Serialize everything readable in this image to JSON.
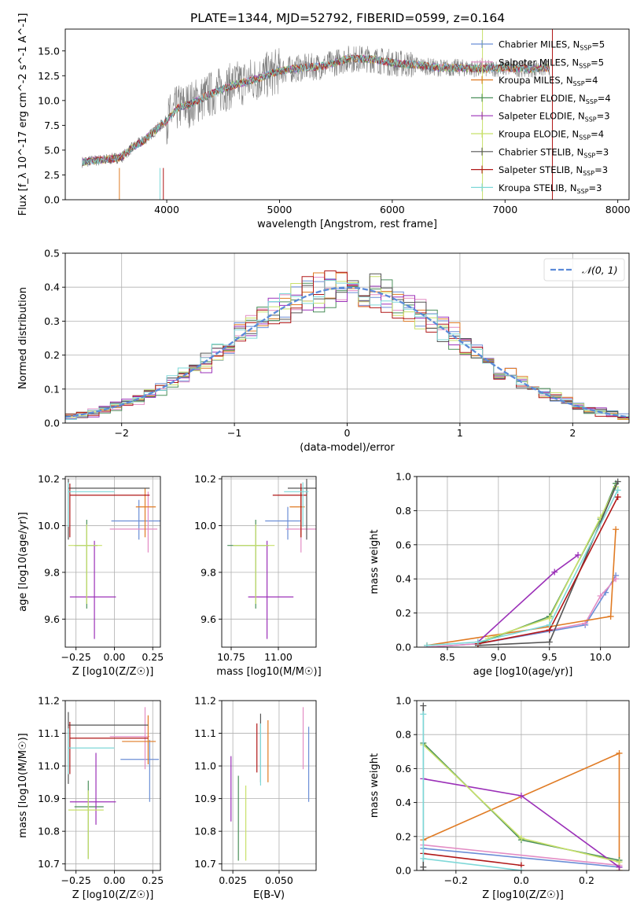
{
  "figure_title": "PLATE=1344, MJD=52792, FIBERID=0599, z=0.164",
  "colors": {
    "Chabrier MILES": "#6b8ed6",
    "Salpeter MILES": "#e38cc4",
    "Kroupa MILES": "#e07b24",
    "Chabrier ELODIE": "#4a8f5a",
    "Salpeter ELODIE": "#9b30b8",
    "Kroupa ELODIE": "#c8e06a",
    "Chabrier STELIB": "#555555",
    "Salpeter STELIB": "#b01818",
    "Kroupa STELIB": "#7ed8d8",
    "data": "#808080",
    "normal": "#5b8ad8"
  },
  "chart_data": [
    {
      "id": "spectrum",
      "type": "line",
      "xlabel": "wavelength [Angstrom, rest frame]",
      "ylabel": "Flux [f_λ 10^-17 erg cm^-2 s^-1 A^-1]",
      "xlim": [
        3100,
        8100
      ],
      "ylim": [
        0,
        17.2
      ],
      "xticks": [
        4000,
        5000,
        6000,
        7000,
        8000
      ],
      "yticks": [
        0.0,
        2.5,
        5.0,
        7.5,
        10.0,
        12.5,
        15.0
      ],
      "legend": "top-right",
      "legend_entries": [
        {
          "model": "Chabrier MILES",
          "nssp": "5"
        },
        {
          "model": "Salpeter MILES",
          "nssp": "5"
        },
        {
          "model": "Kroupa MILES",
          "nssp": "4"
        },
        {
          "model": "Chabrier ELODIE",
          "nssp": "4"
        },
        {
          "model": "Salpeter ELODIE",
          "nssp": "3"
        },
        {
          "model": "Kroupa ELODIE",
          "nssp": "4"
        },
        {
          "model": "Chabrier STELIB",
          "nssp": "3"
        },
        {
          "model": "Salpeter STELIB",
          "nssp": "3"
        },
        {
          "model": "Kroupa STELIB",
          "nssp": "3"
        }
      ],
      "continuum": {
        "x": [
          3250,
          3400,
          3500,
          3600,
          3700,
          3800,
          3900,
          4000,
          4100,
          4200,
          4400,
          4600,
          4800,
          5000,
          5200,
          5400,
          5600,
          5800,
          6000,
          6200,
          6400,
          6600,
          6800,
          7000,
          7200,
          7400
        ],
        "y": [
          3.8,
          4.0,
          4.1,
          4.3,
          5.3,
          6.0,
          7.0,
          8.0,
          9.3,
          9.6,
          10.7,
          11.6,
          12.2,
          13.0,
          13.3,
          13.5,
          14.2,
          14.2,
          13.8,
          13.6,
          13.3,
          13.3,
          13.2,
          13.3,
          13.2,
          13.3
        ]
      }
    },
    {
      "id": "residuals",
      "type": "bar",
      "xlabel": "(data-model)/error",
      "ylabel": "Normed distribution",
      "xlim": [
        -2.5,
        2.5
      ],
      "ylim": [
        0,
        0.5
      ],
      "xticks": [
        -2,
        -1,
        0,
        1,
        2
      ],
      "yticks": [
        0.0,
        0.1,
        0.2,
        0.3,
        0.4,
        0.5
      ],
      "grid": true,
      "legend": "top-right",
      "legend_label": "𝒩(0, 1)",
      "bins": 50
    },
    {
      "id": "age-Z",
      "type": "scatter",
      "xlabel": "Z [log10(Z/Z☉)]",
      "ylabel": "age  [log10(age/yr)]",
      "xlim": [
        -0.32,
        0.3
      ],
      "ylim": [
        9.48,
        10.21
      ],
      "xticks": [
        -0.25,
        0.0,
        0.25
      ],
      "xtick_labels": [
        "−0.25",
        "0.00",
        "0.25"
      ],
      "yticks": [
        9.6,
        9.8,
        10.0,
        10.2
      ],
      "grid": true,
      "points": [
        {
          "model": "Chabrier MILES",
          "x": 0.16,
          "y": 10.02,
          "xerr": [
            0.18,
            0.14
          ],
          "yerr": [
            0.08,
            0.09
          ]
        },
        {
          "model": "Salpeter MILES",
          "x": 0.22,
          "y": 9.985,
          "xerr": [
            0.25,
            0.06
          ],
          "yerr": [
            0.1,
            0.16
          ]
        },
        {
          "model": "Kroupa MILES",
          "x": 0.2,
          "y": 10.08,
          "xerr": [
            0.06,
            0.07
          ],
          "yerr": [
            0.13,
            0.08
          ]
        },
        {
          "model": "Chabrier ELODIE",
          "x": -0.18,
          "y": 9.915,
          "xerr": [
            0.08,
            0.07
          ],
          "yerr": [
            0.27,
            0.11
          ]
        },
        {
          "model": "Salpeter ELODIE",
          "x": -0.13,
          "y": 9.695,
          "xerr": [
            0.16,
            0.14
          ],
          "yerr": [
            0.18,
            0.24
          ]
        },
        {
          "model": "Kroupa ELODIE",
          "x": -0.18,
          "y": 9.915,
          "xerr": [
            0.12,
            0.1
          ],
          "yerr": [
            0.25,
            0.09
          ]
        },
        {
          "model": "Chabrier STELIB",
          "x": -0.3,
          "y": 10.16,
          "xerr": [
            0.0,
            0.53
          ],
          "yerr": [
            0.22,
            0.04
          ]
        },
        {
          "model": "Salpeter STELIB",
          "x": -0.29,
          "y": 10.13,
          "xerr": [
            0.0,
            0.52
          ],
          "yerr": [
            0.18,
            0.05
          ]
        },
        {
          "model": "Kroupa STELIB",
          "x": -0.3,
          "y": 10.145,
          "xerr": [
            0.0,
            0.3
          ],
          "yerr": [
            0.15,
            0.04
          ]
        }
      ]
    },
    {
      "id": "age-mass",
      "type": "scatter",
      "xlabel": "mass [log10(M/M☉)]",
      "ylabel": "",
      "xlim": [
        10.7,
        11.2
      ],
      "ylim": [
        9.48,
        10.21
      ],
      "xticks": [
        10.75,
        11.0
      ],
      "yticks": [
        9.6,
        9.8,
        10.0,
        10.2
      ],
      "grid": true,
      "points": [
        {
          "model": "Chabrier MILES",
          "x": 11.05,
          "y": 10.02,
          "xerr": [
            0.12,
            0.07
          ],
          "yerr": [
            0.08,
            0.06
          ]
        },
        {
          "model": "Salpeter MILES",
          "x": 11.12,
          "y": 9.985,
          "xerr": [
            0.08,
            0.08
          ],
          "yerr": [
            0.1,
            0.14
          ]
        },
        {
          "model": "Kroupa MILES",
          "x": 11.12,
          "y": 10.08,
          "xerr": [
            0.06,
            0.02
          ],
          "yerr": [
            0.13,
            0.08
          ]
        },
        {
          "model": "Chabrier ELODIE",
          "x": 10.88,
          "y": 9.915,
          "xerr": [
            0.15,
            0.07
          ],
          "yerr": [
            0.27,
            0.11
          ]
        },
        {
          "model": "Salpeter ELODIE",
          "x": 10.94,
          "y": 9.695,
          "xerr": [
            0.1,
            0.14
          ],
          "yerr": [
            0.18,
            0.24
          ]
        },
        {
          "model": "Kroupa ELODIE",
          "x": 10.88,
          "y": 9.915,
          "xerr": [
            0.12,
            0.1
          ],
          "yerr": [
            0.25,
            0.09
          ]
        },
        {
          "model": "Chabrier STELIB",
          "x": 11.15,
          "y": 10.16,
          "xerr": [
            0.1,
            0.07
          ],
          "yerr": [
            0.22,
            0.04
          ]
        },
        {
          "model": "Salpeter STELIB",
          "x": 11.12,
          "y": 10.13,
          "xerr": [
            0.15,
            0.03
          ],
          "yerr": [
            0.18,
            0.05
          ]
        },
        {
          "model": "Kroupa STELIB",
          "x": 11.13,
          "y": 10.145,
          "xerr": [
            0.1,
            0.03
          ],
          "yerr": [
            0.15,
            0.04
          ]
        }
      ]
    },
    {
      "id": "weight-age",
      "type": "line",
      "xlabel": "age  [log10(age/yr)]",
      "ylabel": "mass weight",
      "xlim": [
        8.2,
        10.28
      ],
      "ylim": [
        0,
        1
      ],
      "xticks": [
        8.5,
        9.0,
        9.5,
        10.0
      ],
      "yticks": [
        0.0,
        0.2,
        0.4,
        0.6,
        0.8,
        1.0
      ],
      "grid": true,
      "series": [
        {
          "model": "Chabrier MILES",
          "x": [
            8.3,
            8.8,
            9.85,
            10.05,
            10.15
          ],
          "y": [
            0.0,
            0.02,
            0.13,
            0.32,
            0.42
          ]
        },
        {
          "model": "Salpeter MILES",
          "x": [
            8.3,
            8.8,
            9.85,
            10.0,
            10.15
          ],
          "y": [
            0.0,
            0.02,
            0.14,
            0.3,
            0.4
          ]
        },
        {
          "model": "Kroupa MILES",
          "x": [
            8.3,
            9.5,
            10.1,
            10.15
          ],
          "y": [
            0.01,
            0.12,
            0.18,
            0.69
          ]
        },
        {
          "model": "Chabrier ELODIE",
          "x": [
            8.8,
            9.5,
            10.0,
            10.15
          ],
          "y": [
            0.02,
            0.18,
            0.75,
            0.96
          ]
        },
        {
          "model": "Salpeter ELODIE",
          "x": [
            8.8,
            9.55,
            9.78
          ],
          "y": [
            0.03,
            0.44,
            0.54
          ]
        },
        {
          "model": "Kroupa ELODIE",
          "x": [
            8.9,
            9.5,
            10.0,
            10.15
          ],
          "y": [
            0.05,
            0.17,
            0.76,
            0.94
          ]
        },
        {
          "model": "Chabrier STELIB",
          "x": [
            8.8,
            9.5,
            10.17
          ],
          "y": [
            0.01,
            0.03,
            0.97
          ]
        },
        {
          "model": "Salpeter STELIB",
          "x": [
            8.8,
            9.5,
            10.17
          ],
          "y": [
            0.02,
            0.1,
            0.88
          ]
        },
        {
          "model": "Kroupa STELIB",
          "x": [
            8.3,
            8.8,
            9.5,
            10.17
          ],
          "y": [
            0.01,
            0.03,
            0.13,
            0.92
          ]
        }
      ]
    },
    {
      "id": "mass-Z",
      "type": "scatter",
      "xlabel": "Z [log10(Z/Z☉)]",
      "ylabel": "mass [log10(M/M☉)]",
      "xlim": [
        -0.32,
        0.3
      ],
      "ylim": [
        10.68,
        11.2
      ],
      "xticks": [
        -0.25,
        0.0,
        0.25
      ],
      "xtick_labels": [
        "−0.25",
        "0.00",
        "0.25"
      ],
      "yticks": [
        10.7,
        10.8,
        10.9,
        11.0,
        11.1,
        11.2
      ],
      "grid": true,
      "points": [
        {
          "model": "Chabrier MILES",
          "x": 0.23,
          "y": 11.02,
          "xerr": [
            0.19,
            0.06
          ],
          "yerr": [
            0.13,
            0.06
          ]
        },
        {
          "model": "Salpeter MILES",
          "x": 0.2,
          "y": 11.09,
          "xerr": [
            0.23,
            0.03
          ],
          "yerr": [
            0.1,
            0.09
          ]
        },
        {
          "model": "Kroupa MILES",
          "x": 0.22,
          "y": 11.075,
          "xerr": [
            0.17,
            0.05
          ],
          "yerr": [
            0.07,
            0.08
          ]
        },
        {
          "model": "Chabrier ELODIE",
          "x": -0.17,
          "y": 10.875,
          "xerr": [
            0.09,
            0.1
          ],
          "yerr": [
            0.16,
            0.08
          ]
        },
        {
          "model": "Salpeter ELODIE",
          "x": -0.12,
          "y": 10.89,
          "xerr": [
            0.17,
            0.13
          ],
          "yerr": [
            0.07,
            0.15
          ]
        },
        {
          "model": "Kroupa ELODIE",
          "x": -0.17,
          "y": 10.865,
          "xerr": [
            0.13,
            0.1
          ],
          "yerr": [
            0.15,
            0.06
          ]
        },
        {
          "model": "Chabrier STELIB",
          "x": -0.3,
          "y": 11.125,
          "xerr": [
            0.0,
            0.52
          ],
          "yerr": [
            0.18,
            0.04
          ]
        },
        {
          "model": "Salpeter STELIB",
          "x": -0.29,
          "y": 11.085,
          "xerr": [
            0.0,
            0.51
          ],
          "yerr": [
            0.11,
            0.05
          ]
        },
        {
          "model": "Kroupa STELIB",
          "x": -0.3,
          "y": 11.055,
          "xerr": [
            0.0,
            0.3
          ],
          "yerr": [
            0.08,
            0.06
          ]
        }
      ]
    },
    {
      "id": "mass-EBV",
      "type": "scatter",
      "xlabel": "E(B-V)",
      "ylabel": "",
      "xlim": [
        0.019,
        0.07
      ],
      "ylim": [
        10.68,
        11.2
      ],
      "xticks": [
        0.025,
        0.05
      ],
      "xtick_labels": [
        "0.025",
        "0.050"
      ],
      "yticks": [
        10.7,
        10.8,
        10.9,
        11.0,
        11.1,
        11.2
      ],
      "grid": true,
      "points": [
        {
          "model": "Chabrier MILES",
          "x": 0.066,
          "y": 11.02,
          "yerr": [
            0.13,
            0.1
          ]
        },
        {
          "model": "Salpeter MILES",
          "x": 0.063,
          "y": 11.09,
          "yerr": [
            0.1,
            0.09
          ]
        },
        {
          "model": "Kroupa MILES",
          "x": 0.044,
          "y": 11.06,
          "yerr": [
            0.11,
            0.08
          ]
        },
        {
          "model": "Chabrier ELODIE",
          "x": 0.028,
          "y": 10.87,
          "yerr": [
            0.16,
            0.1
          ]
        },
        {
          "model": "Salpeter ELODIE",
          "x": 0.024,
          "y": 10.93,
          "yerr": [
            0.1,
            0.1
          ]
        },
        {
          "model": "Kroupa ELODIE",
          "x": 0.032,
          "y": 10.85,
          "yerr": [
            0.14,
            0.09
          ]
        },
        {
          "model": "Chabrier STELIB",
          "x": 0.04,
          "y": 11.07,
          "yerr": [
            0.12,
            0.09
          ]
        },
        {
          "model": "Salpeter STELIB",
          "x": 0.038,
          "y": 11.05,
          "yerr": [
            0.07,
            0.08
          ]
        },
        {
          "model": "Kroupa STELIB",
          "x": 0.04,
          "y": 11.03,
          "yerr": [
            0.09,
            0.1
          ]
        }
      ]
    },
    {
      "id": "weight-Z",
      "type": "line",
      "xlabel": "Z [log10(Z/Z☉)]",
      "ylabel": "mass weight",
      "xlim": [
        -0.32,
        0.33
      ],
      "ylim": [
        0,
        1
      ],
      "xticks": [
        -0.2,
        0.0,
        0.2
      ],
      "xtick_labels": [
        "−0.2",
        "0.0",
        "0.2"
      ],
      "yticks": [
        0.0,
        0.2,
        0.4,
        0.6,
        0.8,
        1.0
      ],
      "grid": true,
      "series": [
        {
          "model": "Chabrier MILES",
          "x": [
            -0.3,
            0.3
          ],
          "y": [
            0.13,
            0.02
          ]
        },
        {
          "model": "Salpeter MILES",
          "x": [
            -0.3,
            0.3
          ],
          "y": [
            0.15,
            0.03
          ]
        },
        {
          "model": "Kroupa MILES",
          "x": [
            -0.3,
            0.3,
            0.3
          ],
          "y": [
            0.18,
            0.69,
            0.0
          ]
        },
        {
          "model": "Chabrier ELODIE",
          "x": [
            -0.3,
            0.0,
            0.3
          ],
          "y": [
            0.75,
            0.18,
            0.06
          ]
        },
        {
          "model": "Salpeter ELODIE",
          "x": [
            -0.3,
            0.0,
            0.3
          ],
          "y": [
            0.54,
            0.44,
            0.02
          ]
        },
        {
          "model": "Kroupa ELODIE",
          "x": [
            -0.3,
            0.0,
            0.3
          ],
          "y": [
            0.74,
            0.19,
            0.05
          ]
        },
        {
          "model": "Chabrier STELIB",
          "x": [
            -0.3,
            -0.3,
            -0.3
          ],
          "y": [
            0.97,
            0.02,
            0.0
          ]
        },
        {
          "model": "Salpeter STELIB",
          "x": [
            -0.3,
            0.0
          ],
          "y": [
            0.1,
            0.03
          ]
        },
        {
          "model": "Kroupa STELIB",
          "x": [
            -0.3,
            -0.3,
            0.0
          ],
          "y": [
            0.92,
            0.07,
            0.0
          ]
        }
      ]
    }
  ]
}
